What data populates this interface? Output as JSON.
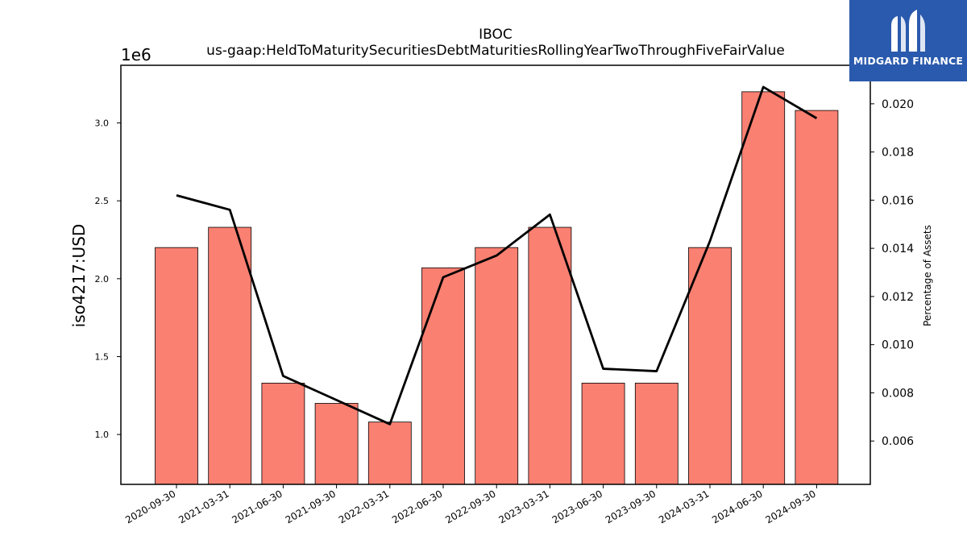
{
  "logo": {
    "text": "MIDGARD FINANCE",
    "icon": "midgard-logo-icon",
    "background": "#2a5aad"
  },
  "chart_data": {
    "type": "bar",
    "title": "IBOC",
    "subtitle": "us-gaap:HeldToMaturitySecuritiesDebtMaturitiesRollingYearTwoThroughFiveFairValue",
    "ylabel": "iso4217:USD",
    "ylabel_right": "Percentage of Assets",
    "y_offset_label": "1e6",
    "bar_color": "#fa8072",
    "line_color": "#000000",
    "ylim": [
      0.68,
      3.37
    ],
    "ylim_right": [
      0.0042,
      0.0216
    ],
    "yticks": [
      1.0,
      1.5,
      2.0,
      2.5,
      3.0
    ],
    "yticks_right": [
      0.006,
      0.008,
      0.01,
      0.012,
      0.014,
      0.016,
      0.018,
      0.02
    ],
    "categories": [
      "2020-09-30",
      "2021-03-31",
      "2021-06-30",
      "2021-09-30",
      "2022-03-31",
      "2022-06-30",
      "2022-09-30",
      "2023-03-31",
      "2023-06-30",
      "2023-09-30",
      "2024-03-31",
      "2024-06-30",
      "2024-09-30"
    ],
    "series": [
      {
        "type": "bar",
        "axis": "left",
        "values": [
          2.2,
          2.33,
          1.33,
          1.2,
          1.08,
          2.07,
          2.2,
          2.33,
          1.33,
          1.33,
          2.2,
          3.2,
          3.08
        ]
      },
      {
        "type": "line",
        "axis": "right",
        "values": [
          0.0162,
          0.0156,
          0.0087,
          0.0077,
          0.0067,
          0.0128,
          0.0137,
          0.0154,
          0.009,
          0.0089,
          0.0143,
          0.0207,
          0.0194
        ]
      }
    ],
    "grid": false,
    "legend": "none"
  }
}
